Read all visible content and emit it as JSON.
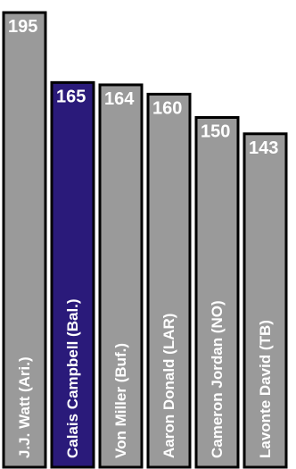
{
  "chart_data": {
    "type": "bar",
    "orientation": "vertical",
    "categories": [
      "J.J. Watt (Ari.)",
      "Calais Campbell (Bal.)",
      "Von Miller (Buf.)",
      "Aaron Donald (LAR)",
      "Cameron Jordan (NO)",
      "Lavonte David (TB)"
    ],
    "values": [
      195,
      165,
      164,
      160,
      150,
      143
    ],
    "highlight_index": 1,
    "ylim": [
      0,
      200
    ],
    "grid": false,
    "legend": "none",
    "title": "",
    "xlabel": "",
    "ylabel": "",
    "colors": {
      "bar": "#9a9a9a",
      "highlight": "#2a1a7a",
      "border": "#000000",
      "text": "#ffffff"
    }
  }
}
